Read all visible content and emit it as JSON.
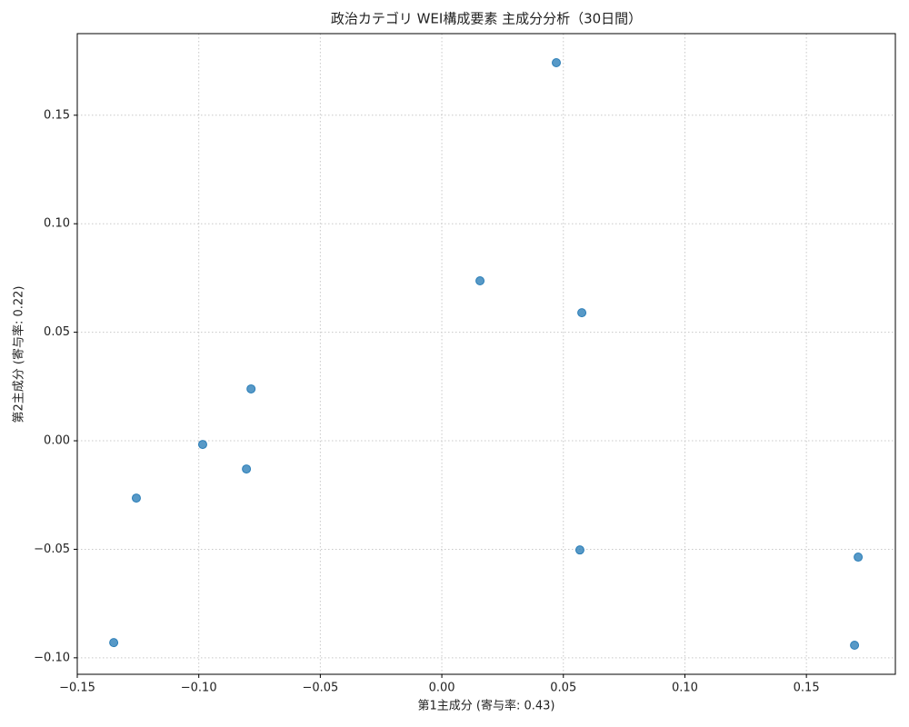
{
  "chart_data": {
    "type": "scatter",
    "title": "政治カテゴリ WEI構成要素 主成分分析（30日間）",
    "x_label": "第1主成分 (寄与率: 0.43)",
    "y_label": "第2主成分 (寄与率: 0.22)",
    "x": [
      0.0471,
      0.0157,
      0.0576,
      -0.0785,
      -0.0984,
      -0.0804,
      -0.1257,
      0.0568,
      0.1713,
      -0.135,
      0.1698
    ],
    "values": [
      0.1742,
      0.0737,
      0.059,
      0.0239,
      -0.0017,
      -0.013,
      -0.0264,
      -0.0503,
      -0.0536,
      -0.093,
      -0.0942
    ],
    "color": "#1f77b4",
    "xlim": [
      -0.15,
      0.1866
    ],
    "ylim": [
      -0.1076,
      0.1876
    ],
    "xticks": [
      {
        "value": -0.15,
        "label": "−0.15"
      },
      {
        "value": -0.1,
        "label": "−0.10"
      },
      {
        "value": -0.05,
        "label": "−0.05"
      },
      {
        "value": 0,
        "label": "0.00"
      },
      0.05,
      {
        "value": 0.1,
        "label": "0.10"
      },
      0.15
    ],
    "yticks": [
      {
        "value": -0.1,
        "label": "−0.10"
      },
      {
        "value": -0.05,
        "label": "−0.05"
      },
      {
        "value": 0,
        "label": "0.00"
      },
      0.05,
      {
        "value": 0.1,
        "label": "0.10"
      },
      0.15
    ],
    "grid": true
  }
}
